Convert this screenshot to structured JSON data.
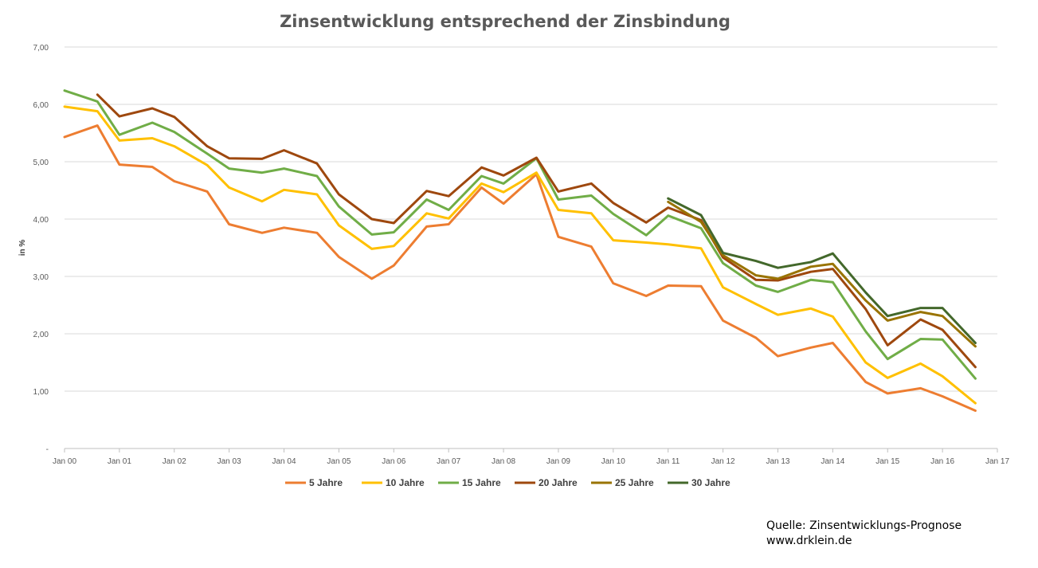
{
  "chart_data": {
    "type": "line",
    "title": "Zinsentwicklung entsprechend der Zinsbindung",
    "xlabel": "",
    "ylabel": "in %",
    "ylim": [
      0,
      7
    ],
    "xlim": [
      2000,
      2017
    ],
    "yticks": [
      {
        "value": 0,
        "label": "-"
      },
      {
        "value": 1,
        "label": "1,00"
      },
      {
        "value": 2,
        "label": "2,00"
      },
      {
        "value": 3,
        "label": "3,00"
      },
      {
        "value": 4,
        "label": "4,00"
      },
      {
        "value": 5,
        "label": "5,00"
      },
      {
        "value": 6,
        "label": "6,00"
      },
      {
        "value": 7,
        "label": "7,00"
      }
    ],
    "xticks": [
      {
        "value": 2000,
        "label": "Jan 00"
      },
      {
        "value": 2001,
        "label": "Jan 01"
      },
      {
        "value": 2002,
        "label": "Jan 02"
      },
      {
        "value": 2003,
        "label": "Jan 03"
      },
      {
        "value": 2004,
        "label": "Jan 04"
      },
      {
        "value": 2005,
        "label": "Jan 05"
      },
      {
        "value": 2006,
        "label": "Jan 06"
      },
      {
        "value": 2007,
        "label": "Jan 07"
      },
      {
        "value": 2008,
        "label": "Jan 08"
      },
      {
        "value": 2009,
        "label": "Jan 09"
      },
      {
        "value": 2010,
        "label": "Jan 10"
      },
      {
        "value": 2011,
        "label": "Jan 11"
      },
      {
        "value": 2012,
        "label": "Jan 12"
      },
      {
        "value": 2013,
        "label": "Jan 13"
      },
      {
        "value": 2014,
        "label": "Jan 14"
      },
      {
        "value": 2015,
        "label": "Jan 15"
      },
      {
        "value": 2016,
        "label": "Jan 16"
      },
      {
        "value": 2017,
        "label": "Jan 17"
      }
    ],
    "grid": true,
    "legend_position": "bottom",
    "series": [
      {
        "name": "5 Jahre",
        "color": "#ED7D31",
        "points": [
          [
            2000.0,
            5.43
          ],
          [
            2000.6,
            5.63
          ],
          [
            2001.0,
            4.95
          ],
          [
            2001.6,
            4.91
          ],
          [
            2002.0,
            4.66
          ],
          [
            2002.6,
            4.48
          ],
          [
            2003.0,
            3.91
          ],
          [
            2003.6,
            3.76
          ],
          [
            2004.0,
            3.85
          ],
          [
            2004.6,
            3.76
          ],
          [
            2005.0,
            3.34
          ],
          [
            2005.6,
            2.96
          ],
          [
            2006.0,
            3.19
          ],
          [
            2006.6,
            3.87
          ],
          [
            2007.0,
            3.91
          ],
          [
            2007.6,
            4.55
          ],
          [
            2008.0,
            4.27
          ],
          [
            2008.6,
            4.78
          ],
          [
            2009.0,
            3.69
          ],
          [
            2009.6,
            3.52
          ],
          [
            2010.0,
            2.88
          ],
          [
            2010.6,
            2.66
          ],
          [
            2011.0,
            2.84
          ],
          [
            2011.6,
            2.83
          ],
          [
            2012.0,
            2.23
          ],
          [
            2012.6,
            1.93
          ],
          [
            2013.0,
            1.61
          ],
          [
            2013.6,
            1.76
          ],
          [
            2014.0,
            1.84
          ],
          [
            2014.6,
            1.16
          ],
          [
            2015.0,
            0.96
          ],
          [
            2015.6,
            1.05
          ],
          [
            2016.0,
            0.91
          ],
          [
            2016.6,
            0.66
          ]
        ]
      },
      {
        "name": "10 Jahre",
        "color": "#FFC000",
        "points": [
          [
            2000.0,
            5.96
          ],
          [
            2000.6,
            5.88
          ],
          [
            2001.0,
            5.37
          ],
          [
            2001.6,
            5.41
          ],
          [
            2002.0,
            5.27
          ],
          [
            2002.6,
            4.94
          ],
          [
            2003.0,
            4.55
          ],
          [
            2003.6,
            4.31
          ],
          [
            2004.0,
            4.51
          ],
          [
            2004.6,
            4.43
          ],
          [
            2005.0,
            3.89
          ],
          [
            2005.6,
            3.48
          ],
          [
            2006.0,
            3.53
          ],
          [
            2006.6,
            4.1
          ],
          [
            2007.0,
            4.01
          ],
          [
            2007.6,
            4.62
          ],
          [
            2008.0,
            4.47
          ],
          [
            2008.6,
            4.81
          ],
          [
            2009.0,
            4.16
          ],
          [
            2009.6,
            4.1
          ],
          [
            2010.0,
            3.63
          ],
          [
            2010.6,
            3.59
          ],
          [
            2011.0,
            3.56
          ],
          [
            2011.6,
            3.49
          ],
          [
            2012.0,
            2.81
          ],
          [
            2012.6,
            2.52
          ],
          [
            2013.0,
            2.33
          ],
          [
            2013.6,
            2.44
          ],
          [
            2014.0,
            2.3
          ],
          [
            2014.6,
            1.5
          ],
          [
            2015.0,
            1.23
          ],
          [
            2015.6,
            1.48
          ],
          [
            2016.0,
            1.26
          ],
          [
            2016.6,
            0.79
          ]
        ]
      },
      {
        "name": "15 Jahre",
        "color": "#70AD47",
        "points": [
          [
            2000.0,
            6.24
          ],
          [
            2000.6,
            6.05
          ],
          [
            2001.0,
            5.47
          ],
          [
            2001.6,
            5.68
          ],
          [
            2002.0,
            5.52
          ],
          [
            2002.6,
            5.14
          ],
          [
            2003.0,
            4.88
          ],
          [
            2003.6,
            4.81
          ],
          [
            2004.0,
            4.88
          ],
          [
            2004.6,
            4.75
          ],
          [
            2005.0,
            4.22
          ],
          [
            2005.6,
            3.73
          ],
          [
            2006.0,
            3.77
          ],
          [
            2006.6,
            4.34
          ],
          [
            2007.0,
            4.16
          ],
          [
            2007.6,
            4.75
          ],
          [
            2008.0,
            4.62
          ],
          [
            2008.6,
            5.06
          ],
          [
            2009.0,
            4.34
          ],
          [
            2009.6,
            4.41
          ],
          [
            2010.0,
            4.09
          ],
          [
            2010.6,
            3.72
          ],
          [
            2011.0,
            4.06
          ],
          [
            2011.6,
            3.84
          ],
          [
            2012.0,
            3.23
          ],
          [
            2012.6,
            2.84
          ],
          [
            2013.0,
            2.73
          ],
          [
            2013.6,
            2.94
          ],
          [
            2014.0,
            2.9
          ],
          [
            2014.6,
            2.04
          ],
          [
            2015.0,
            1.56
          ],
          [
            2015.6,
            1.91
          ],
          [
            2016.0,
            1.9
          ],
          [
            2016.6,
            1.22
          ]
        ]
      },
      {
        "name": "20 Jahre",
        "color": "#9E480E",
        "points": [
          [
            2000.6,
            6.17
          ],
          [
            2001.0,
            5.79
          ],
          [
            2001.6,
            5.93
          ],
          [
            2002.0,
            5.78
          ],
          [
            2002.6,
            5.27
          ],
          [
            2003.0,
            5.06
          ],
          [
            2003.6,
            5.05
          ],
          [
            2004.0,
            5.2
          ],
          [
            2004.6,
            4.97
          ],
          [
            2005.0,
            4.43
          ],
          [
            2005.6,
            4.0
          ],
          [
            2006.0,
            3.93
          ],
          [
            2006.6,
            4.49
          ],
          [
            2007.0,
            4.4
          ],
          [
            2007.6,
            4.9
          ],
          [
            2008.0,
            4.76
          ],
          [
            2008.6,
            5.07
          ],
          [
            2009.0,
            4.48
          ],
          [
            2009.6,
            4.62
          ],
          [
            2010.0,
            4.28
          ],
          [
            2010.6,
            3.94
          ],
          [
            2011.0,
            4.2
          ],
          [
            2011.6,
            3.98
          ],
          [
            2012.0,
            3.33
          ],
          [
            2012.6,
            2.94
          ],
          [
            2013.0,
            2.93
          ],
          [
            2013.6,
            3.08
          ],
          [
            2014.0,
            3.13
          ],
          [
            2014.6,
            2.43
          ],
          [
            2015.0,
            1.8
          ],
          [
            2015.6,
            2.25
          ],
          [
            2016.0,
            2.07
          ],
          [
            2016.6,
            1.42
          ]
        ]
      },
      {
        "name": "25 Jahre",
        "color": "#997300",
        "points": [
          [
            2011.0,
            4.3
          ],
          [
            2011.6,
            3.95
          ],
          [
            2012.0,
            3.37
          ],
          [
            2012.6,
            3.02
          ],
          [
            2013.0,
            2.96
          ],
          [
            2013.6,
            3.17
          ],
          [
            2014.0,
            3.22
          ],
          [
            2014.6,
            2.58
          ],
          [
            2015.0,
            2.23
          ],
          [
            2015.6,
            2.38
          ],
          [
            2016.0,
            2.31
          ],
          [
            2016.6,
            1.78
          ]
        ]
      },
      {
        "name": "30 Jahre",
        "color": "#43682B",
        "points": [
          [
            2011.0,
            4.36
          ],
          [
            2011.6,
            4.07
          ],
          [
            2012.0,
            3.41
          ],
          [
            2012.6,
            3.27
          ],
          [
            2013.0,
            3.15
          ],
          [
            2013.6,
            3.25
          ],
          [
            2014.0,
            3.4
          ],
          [
            2014.6,
            2.72
          ],
          [
            2015.0,
            2.31
          ],
          [
            2015.6,
            2.45
          ],
          [
            2016.0,
            2.45
          ],
          [
            2016.6,
            1.84
          ]
        ]
      }
    ]
  },
  "source": {
    "line1": "Quelle: Zinsentwicklungs-Prognose",
    "line2": "www.drklein.de"
  }
}
